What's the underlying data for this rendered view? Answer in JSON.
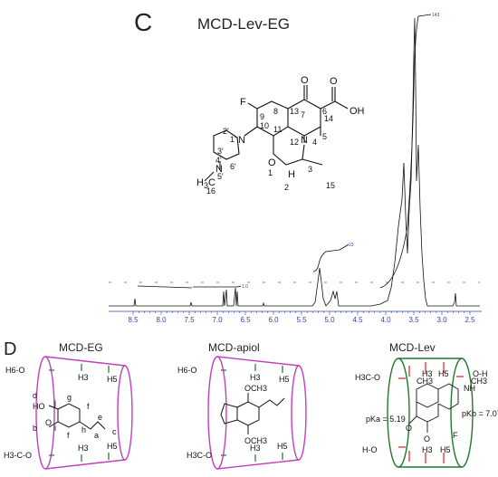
{
  "panel_c": {
    "letter": "C",
    "title": "MCD-Lev-EG",
    "axis_ticks": [
      "8.5",
      "8.0",
      "7.5",
      "7.0",
      "6.5",
      "6.0",
      "5.5",
      "5.0",
      "4.5",
      "4.0",
      "3.5",
      "3.0",
      "2.5"
    ],
    "integrals": [
      "1.0",
      "23",
      "143"
    ],
    "atoms": {
      "F": "F",
      "O_top": "O",
      "O_acid": "O",
      "OH": "OH",
      "N1": "N",
      "N4": "N",
      "N_lower": "N",
      "O1": "O",
      "H3": "H",
      "CH3": "H",
      "CH3_sub": "3",
      "C_methyl": "C"
    },
    "numbers": [
      "13",
      "7",
      "6",
      "8",
      "9",
      "14",
      "10",
      "11",
      "5",
      "2'",
      "1'",
      "12",
      "3'",
      "4",
      "4'",
      "5'",
      "6'",
      "1",
      "2",
      "3",
      "15",
      "16"
    ]
  },
  "panel_d": {
    "letter": "D",
    "complexes": [
      {
        "title": "MCD-EG",
        "left_labels": [
          "H6-O",
          "H3-C-O"
        ],
        "inner_top": [
          "H3",
          "H5"
        ],
        "inner_bottom": [
          "H3",
          "H5"
        ],
        "atom_labels": [
          "d",
          "j",
          "g",
          "f",
          "HO",
          "e",
          "c",
          "b",
          "i",
          "f",
          "h",
          "a",
          "O"
        ]
      },
      {
        "title": "MCD-apiol",
        "left_labels": [
          "H6-O",
          "H3C-O"
        ],
        "inner_top": [
          "H3",
          "H5"
        ],
        "inner_bottom": [
          "H3",
          "H5"
        ],
        "groups": [
          "OCH3",
          "OCH3"
        ]
      },
      {
        "title": "MCD-Lev",
        "left_labels": [
          "H3C-O",
          "H-O"
        ],
        "right_labels": [
          "O-H"
        ],
        "pka_a": "pKa = 5.19",
        "pka_b": "pKb = 7.07",
        "groups": [
          "CH3",
          "NH",
          "CH3",
          "H5",
          "H3",
          "H3",
          "H5",
          "F",
          "O",
          "O"
        ]
      }
    ]
  },
  "colors": {
    "spectrum": "#111111",
    "axis": "#3344aa",
    "integral": "#3344aa",
    "mcd_eg": "#c040c0",
    "mcd_apiol": "#c040c0",
    "mcd_lev": "#1f7a2a",
    "red_contact": "#e02020",
    "green_contact": "#1f7a2a"
  }
}
